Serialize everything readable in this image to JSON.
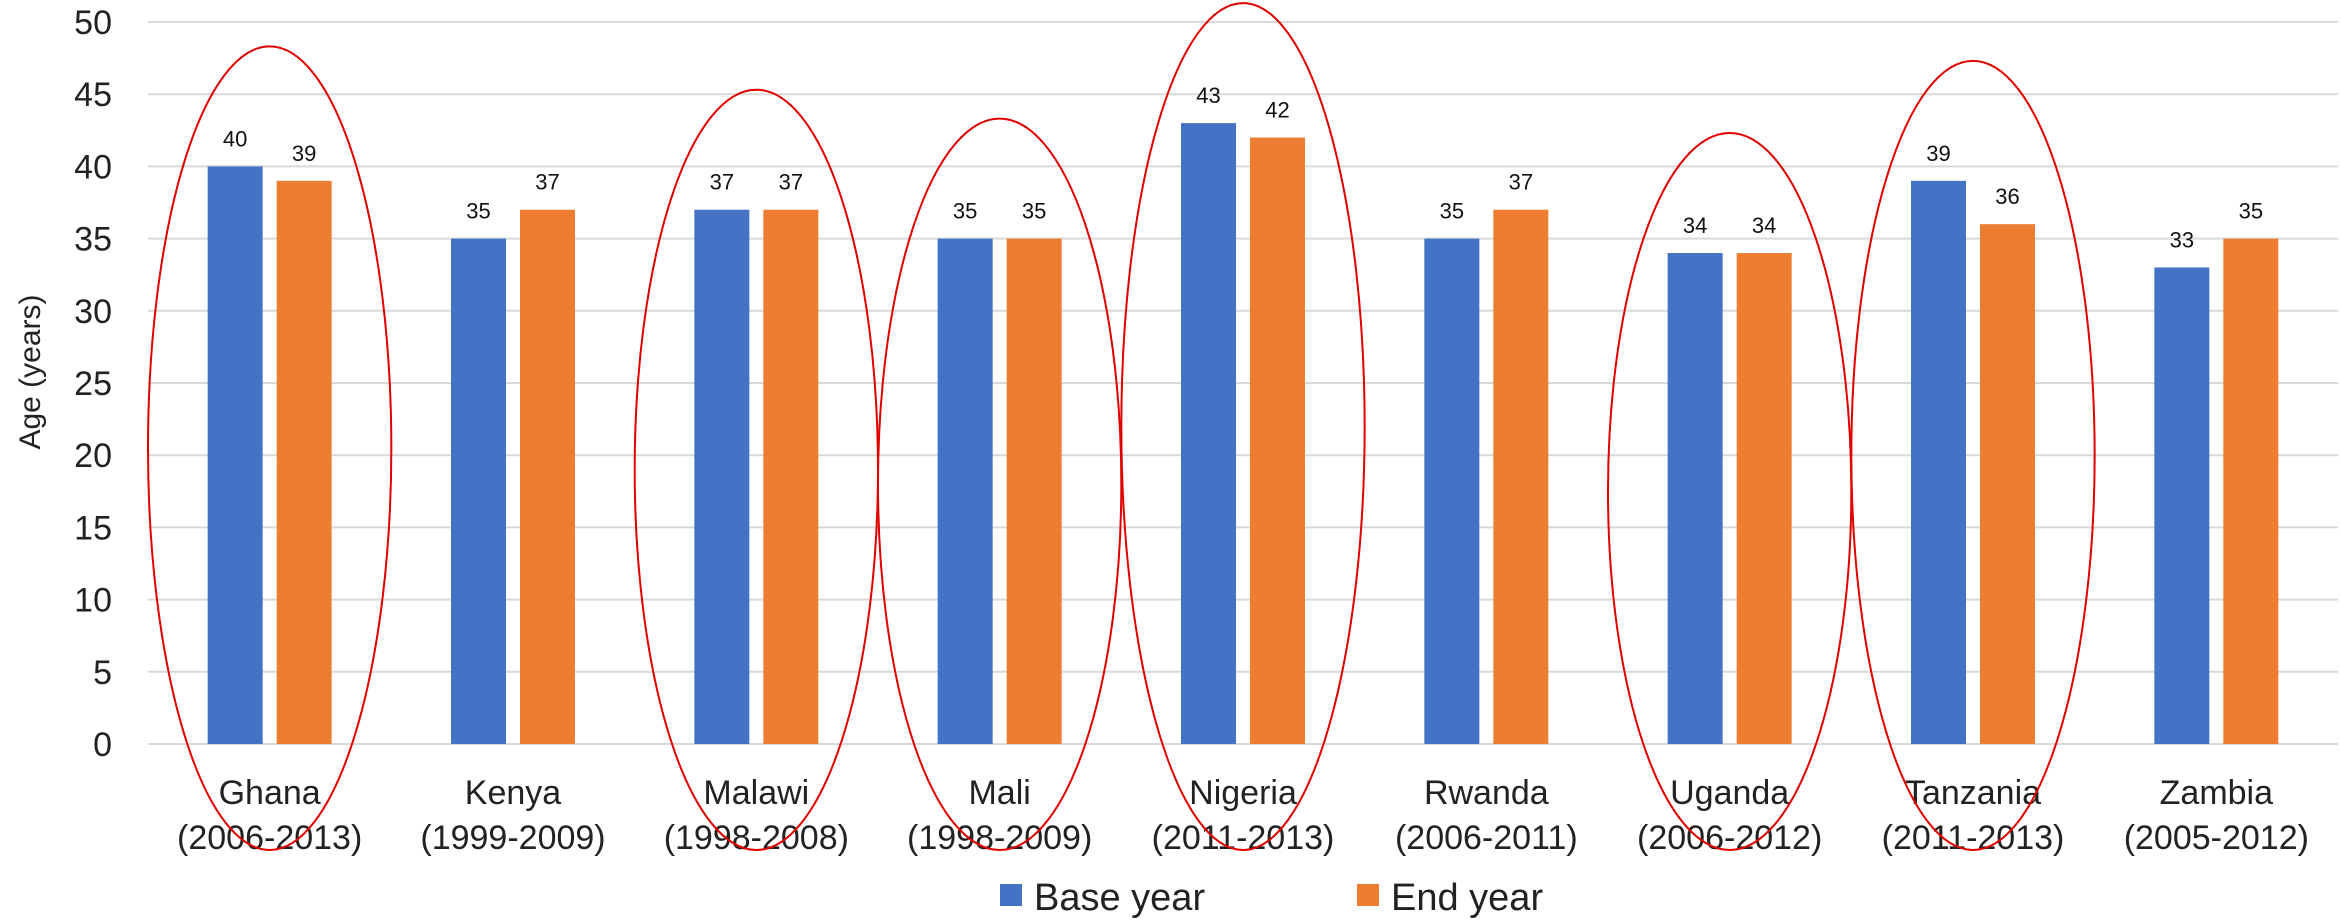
{
  "chart_data": {
    "type": "bar",
    "ylabel": "Age (years)",
    "xlabel": "",
    "ylim": [
      0,
      50
    ],
    "yticks": [
      0,
      5,
      10,
      15,
      20,
      25,
      30,
      35,
      40,
      45,
      50
    ],
    "grid": true,
    "legend_position": "bottom",
    "categories": [
      [
        "Ghana",
        "(2006-2013)"
      ],
      [
        "Kenya",
        "(1999-2009)"
      ],
      [
        "Malawi",
        "(1998-2008)"
      ],
      [
        "Mali",
        "(1998-2009)"
      ],
      [
        "Nigeria",
        "(2011-2013)"
      ],
      [
        "Rwanda",
        "(2006-2011)"
      ],
      [
        "Uganda",
        "(2006-2012)"
      ],
      [
        "Tanzania",
        "(2011-2013)"
      ],
      [
        "Zambia",
        "(2005-2012)"
      ]
    ],
    "series": [
      {
        "name": "Base year",
        "color": "#4472C4",
        "values": [
          40,
          35,
          37,
          35,
          43,
          35,
          34,
          39,
          33
        ]
      },
      {
        "name": "End year",
        "color": "#ED7D31",
        "values": [
          39,
          37,
          37,
          35,
          42,
          37,
          34,
          36,
          35
        ]
      }
    ],
    "highlighted_categories": [
      "Ghana",
      "Malawi",
      "Mali",
      "Nigeria",
      "Uganda",
      "Tanzania"
    ],
    "highlight_color": "#E00000",
    "gridline_color": "#D9D9D9"
  }
}
